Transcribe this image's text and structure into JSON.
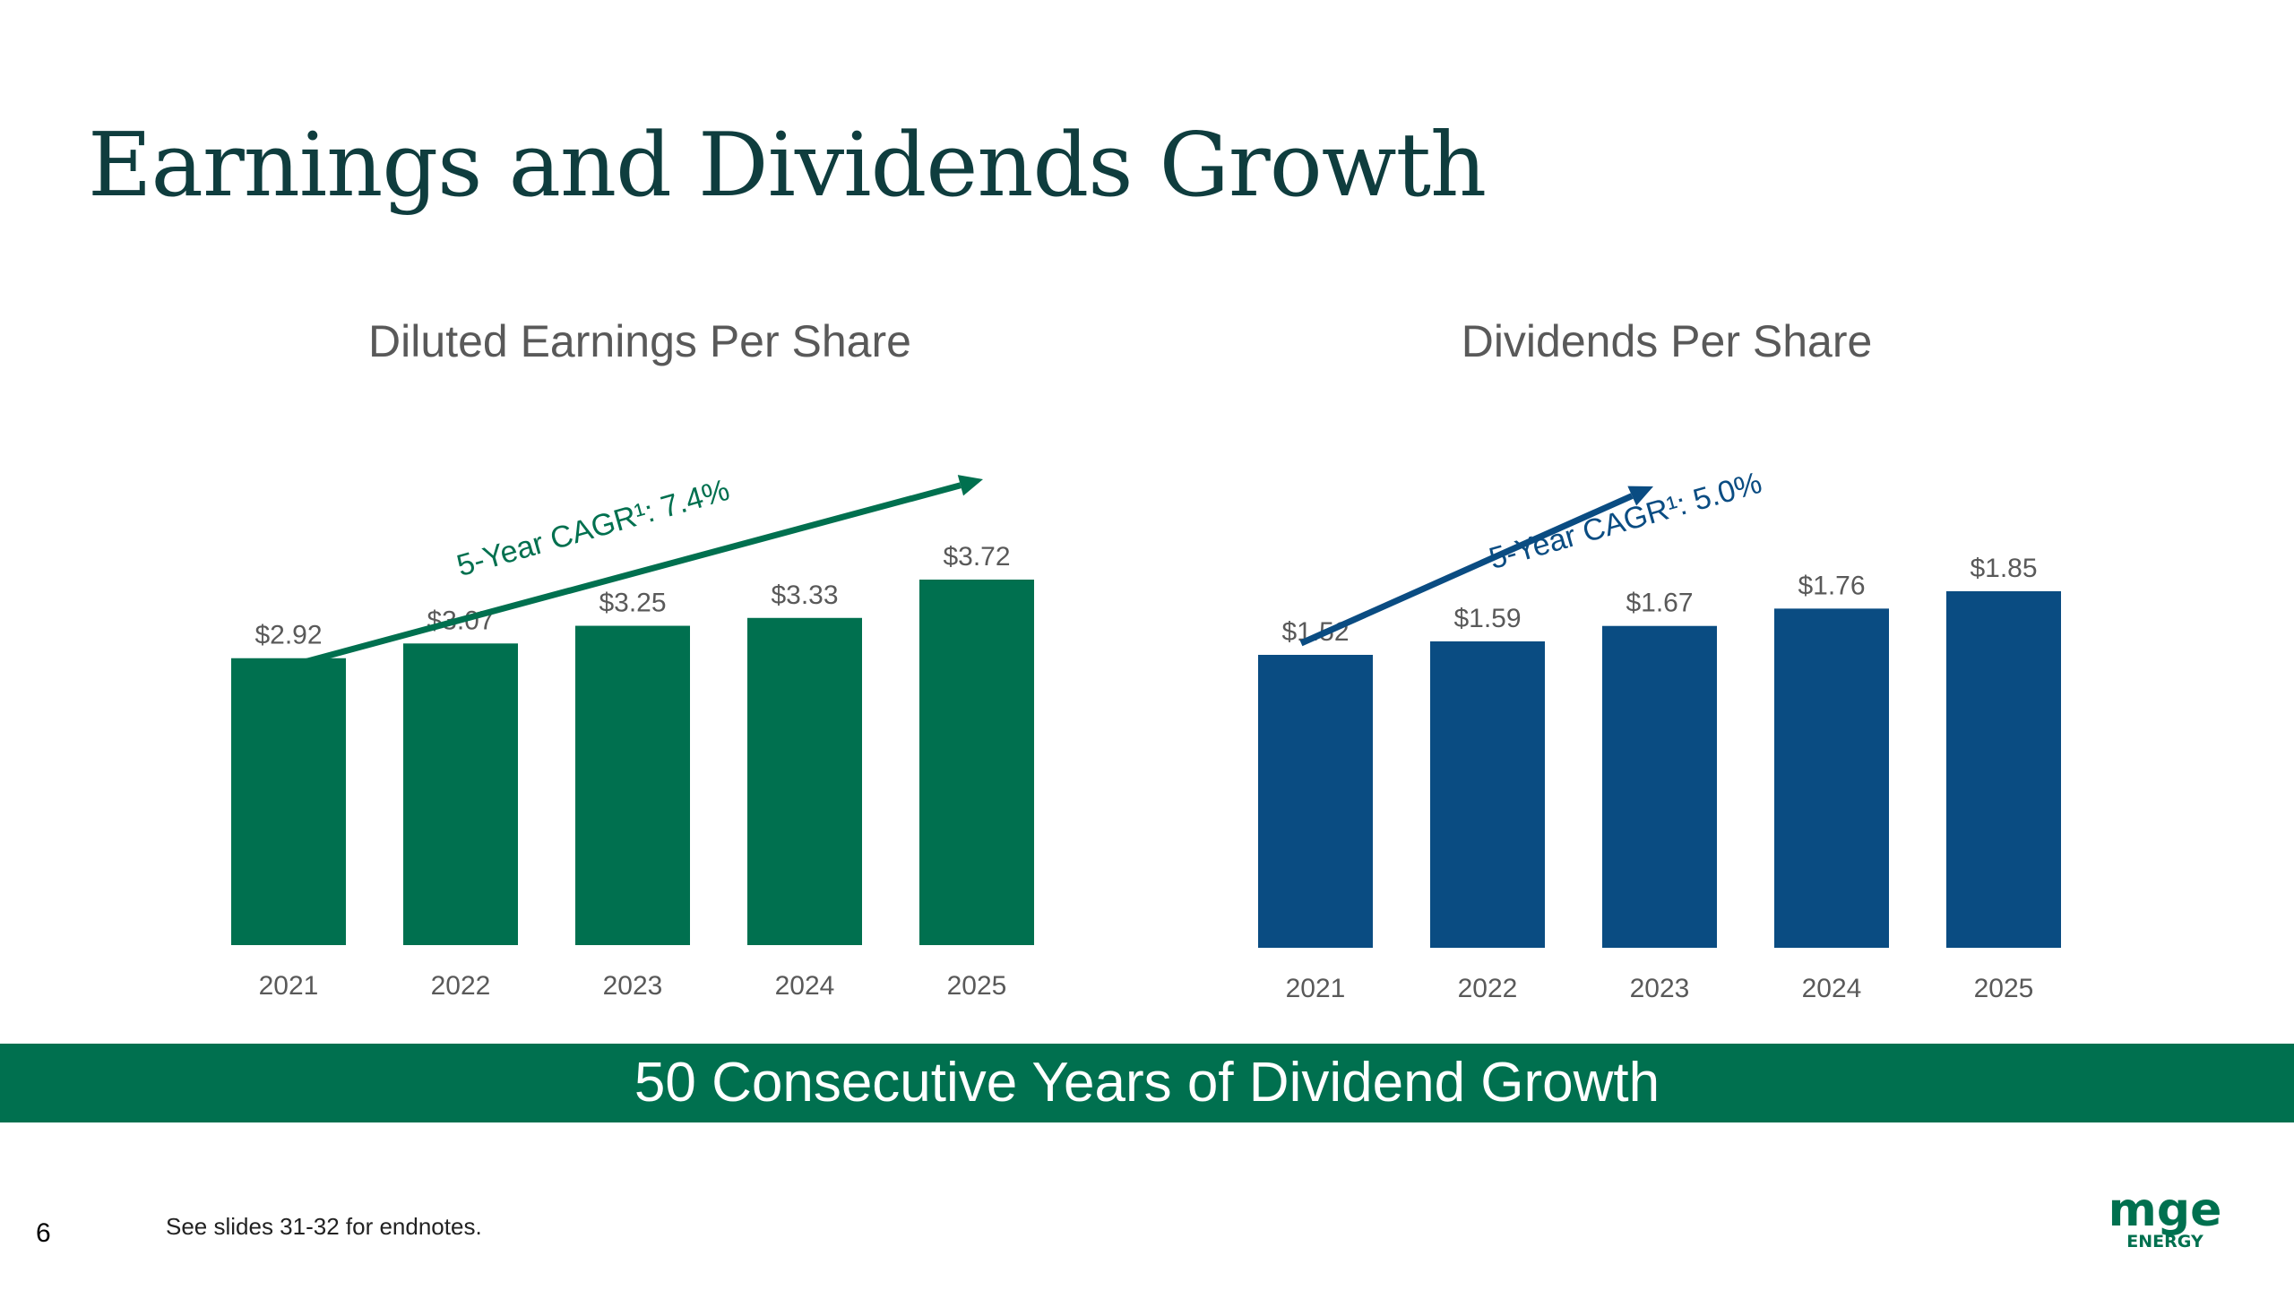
{
  "slide": {
    "title": "Earnings and Dividends Growth",
    "banner": "50 Consecutive Years of Dividend Growth",
    "page_number": "6",
    "endnote": "See slides 31-32 for endnotes.",
    "logo_text": "MGE",
    "logo_subtext": "ENERGY"
  },
  "colors": {
    "title": "#0f3d3e",
    "eps_bar": "#00704f",
    "dps_bar": "#0a4c82",
    "banner": "#00704f",
    "label": "#595959"
  },
  "chart_data": [
    {
      "type": "bar",
      "title": "Diluted Earnings Per Share",
      "categories": [
        "2021",
        "2022",
        "2023",
        "2024",
        "2025"
      ],
      "values": [
        2.92,
        3.07,
        3.25,
        3.33,
        3.72
      ],
      "data_labels": [
        "$2.92",
        "$3.07",
        "$3.25",
        "$3.33",
        "$3.72"
      ],
      "annotation": "5-Year CAGR¹: 7.4%",
      "color": "#00704f"
    },
    {
      "type": "bar",
      "title": "Dividends Per Share",
      "categories": [
        "2021",
        "2022",
        "2023",
        "2024",
        "2025"
      ],
      "values": [
        1.52,
        1.59,
        1.67,
        1.76,
        1.85
      ],
      "data_labels": [
        "$1.52",
        "$1.59",
        "$1.67",
        "$1.76",
        "$1.85"
      ],
      "annotation": "5-Year CAGR¹: 5.0%",
      "color": "#0a4c82"
    }
  ]
}
